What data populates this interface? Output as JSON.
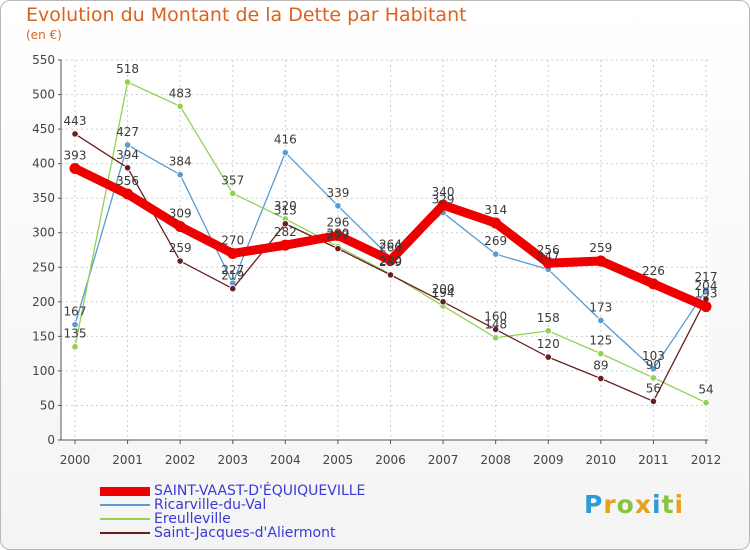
{
  "chart_data": {
    "type": "line",
    "title": "Evolution du Montant de la Dette par Habitant",
    "subtitle": "(en €)",
    "x": [
      "2000",
      "2001",
      "2002",
      "2003",
      "2004",
      "2005",
      "2006",
      "2007",
      "2008",
      "2009",
      "2010",
      "2011",
      "2012"
    ],
    "ylim": [
      0,
      550
    ],
    "yticks": [
      0,
      50,
      100,
      150,
      200,
      250,
      300,
      350,
      400,
      450,
      500,
      550
    ],
    "grid": true,
    "legend_position": "bottom-left",
    "series": [
      {
        "name": "SAINT-VAAST-D'ÉQUIQUEVILLE",
        "color": "#ee0000",
        "values": [
          393,
          356,
          309,
          270,
          282,
          296,
          260,
          340,
          314,
          256,
          259,
          226,
          193
        ]
      },
      {
        "name": "Ricarville-du-Val",
        "color": "#5b9bd0",
        "values": [
          167,
          427,
          384,
          227,
          416,
          339,
          264,
          329,
          269,
          247,
          173,
          103,
          217
        ]
      },
      {
        "name": "Ereulleville",
        "color": "#8fd255",
        "values": [
          135,
          518,
          483,
          357,
          320,
          280,
          240,
          194,
          148,
          158,
          125,
          90,
          54
        ]
      },
      {
        "name": "Saint-Jacques-d'Aliermont",
        "color": "#6a1f1f",
        "values": [
          443,
          394,
          259,
          219,
          313,
          277,
          239,
          200,
          160,
          120,
          89,
          56,
          204
        ]
      }
    ]
  },
  "legend": [
    {
      "label": "SAINT-VAAST-D'ÉQUIQUEVILLE",
      "color": "#ee0000",
      "thick": true
    },
    {
      "label": "Ricarville-du-Val",
      "color": "#5b9bd0",
      "thick": false
    },
    {
      "label": "Ereulleville",
      "color": "#8fd255",
      "thick": false
    },
    {
      "label": "Saint-Jacques-d'Aliermont",
      "color": "#6a1f1f",
      "thick": false
    }
  ],
  "logo": {
    "letters": [
      "P",
      "r",
      "o",
      "x",
      "i",
      "t",
      "i"
    ],
    "colors": [
      "#2f9ad6",
      "#e8a21a",
      "#8ac43f",
      "#e8a21a",
      "#2f9ad6",
      "#8ac43f",
      "#e8a21a"
    ]
  }
}
